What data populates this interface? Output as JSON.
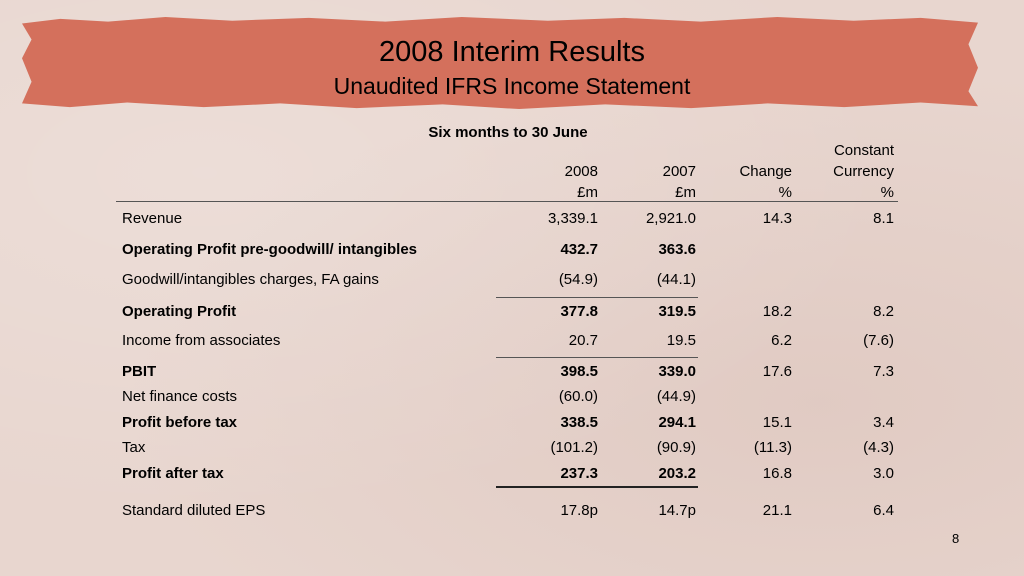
{
  "title": "2008 Interim Results",
  "subtitle": "Unaudited IFRS Income Statement",
  "period": "Six months to 30 June",
  "headers": {
    "col1": [
      "2008",
      "£m"
    ],
    "col2": [
      "2007",
      "£m"
    ],
    "col3": [
      "Change",
      "%"
    ],
    "col4": [
      "Constant",
      "Currency",
      "%"
    ]
  },
  "rows": [
    {
      "label": "Revenue",
      "v2008": "3,339.1",
      "v2007": "2,921.0",
      "change": "14.3",
      "cc": "8.1"
    },
    {
      "label": "Operating Profit pre-goodwill/ intangibles",
      "v2008": "432.7",
      "v2007": "363.6",
      "change": "",
      "cc": ""
    },
    {
      "label": "Goodwill/intangibles charges, FA gains",
      "v2008": "(54.9)",
      "v2007": "(44.1)",
      "change": "",
      "cc": ""
    },
    {
      "label": "Operating Profit",
      "v2008": "377.8",
      "v2007": "319.5",
      "change": "18.2",
      "cc": "8.2"
    },
    {
      "label": "Income from associates",
      "v2008": "20.7",
      "v2007": "19.5",
      "change": "6.2",
      "cc": "(7.6)"
    },
    {
      "label": "PBIT",
      "v2008": "398.5",
      "v2007": "339.0",
      "change": "17.6",
      "cc": "7.3"
    },
    {
      "label": "Net finance costs",
      "v2008": "(60.0)",
      "v2007": "(44.9)",
      "change": "",
      "cc": ""
    },
    {
      "label": "Profit before tax",
      "v2008": "338.5",
      "v2007": "294.1",
      "change": "15.1",
      "cc": "3.4"
    },
    {
      "label": "Tax",
      "v2008": "(101.2)",
      "v2007": "(90.9)",
      "change": "(11.3)",
      "cc": "(4.3)"
    },
    {
      "label": "Profit after tax",
      "v2008": "237.3",
      "v2007": "203.2",
      "change": "16.8",
      "cc": "3.0"
    },
    {
      "label": "Standard diluted EPS",
      "v2008": "17.8p",
      "v2007": "14.7p",
      "change": "21.1",
      "cc": "6.4"
    }
  ],
  "page_number": "8",
  "colors": {
    "banner": "#d4705c",
    "background": "#e8d6cf"
  }
}
